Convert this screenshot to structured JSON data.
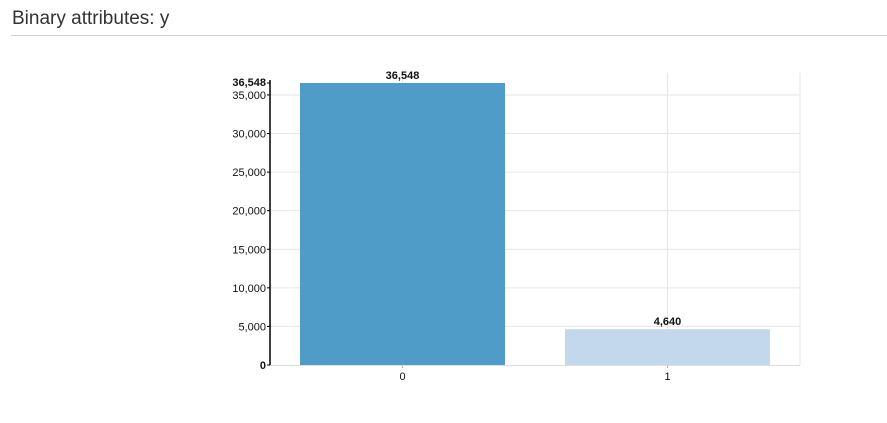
{
  "header": {
    "title": "Binary attributes: y"
  },
  "colors": {
    "bar_primary": "#4a9ac6",
    "bar_secondary": "#c2d7ec",
    "grid": "#e6e6e6",
    "axis": "#000000"
  },
  "chart_data": {
    "type": "bar",
    "title": "",
    "xlabel": "",
    "ylabel": "",
    "categories": [
      "0",
      "1"
    ],
    "values": [
      36548,
      4640
    ],
    "value_labels": [
      "36,548",
      "4,640"
    ],
    "bar_colors": [
      "#4a9ac6",
      "#c2d7ec"
    ],
    "ylim": [
      0,
      36548
    ],
    "y_ticks": [
      0,
      5000,
      10000,
      15000,
      20000,
      25000,
      30000,
      35000
    ],
    "y_tick_labels": [
      "0",
      "5,000",
      "10,000",
      "15,000",
      "20,000",
      "25,000",
      "30,000",
      "35,000"
    ],
    "y_max_label": "36,548",
    "grid": true,
    "legend": "none"
  }
}
